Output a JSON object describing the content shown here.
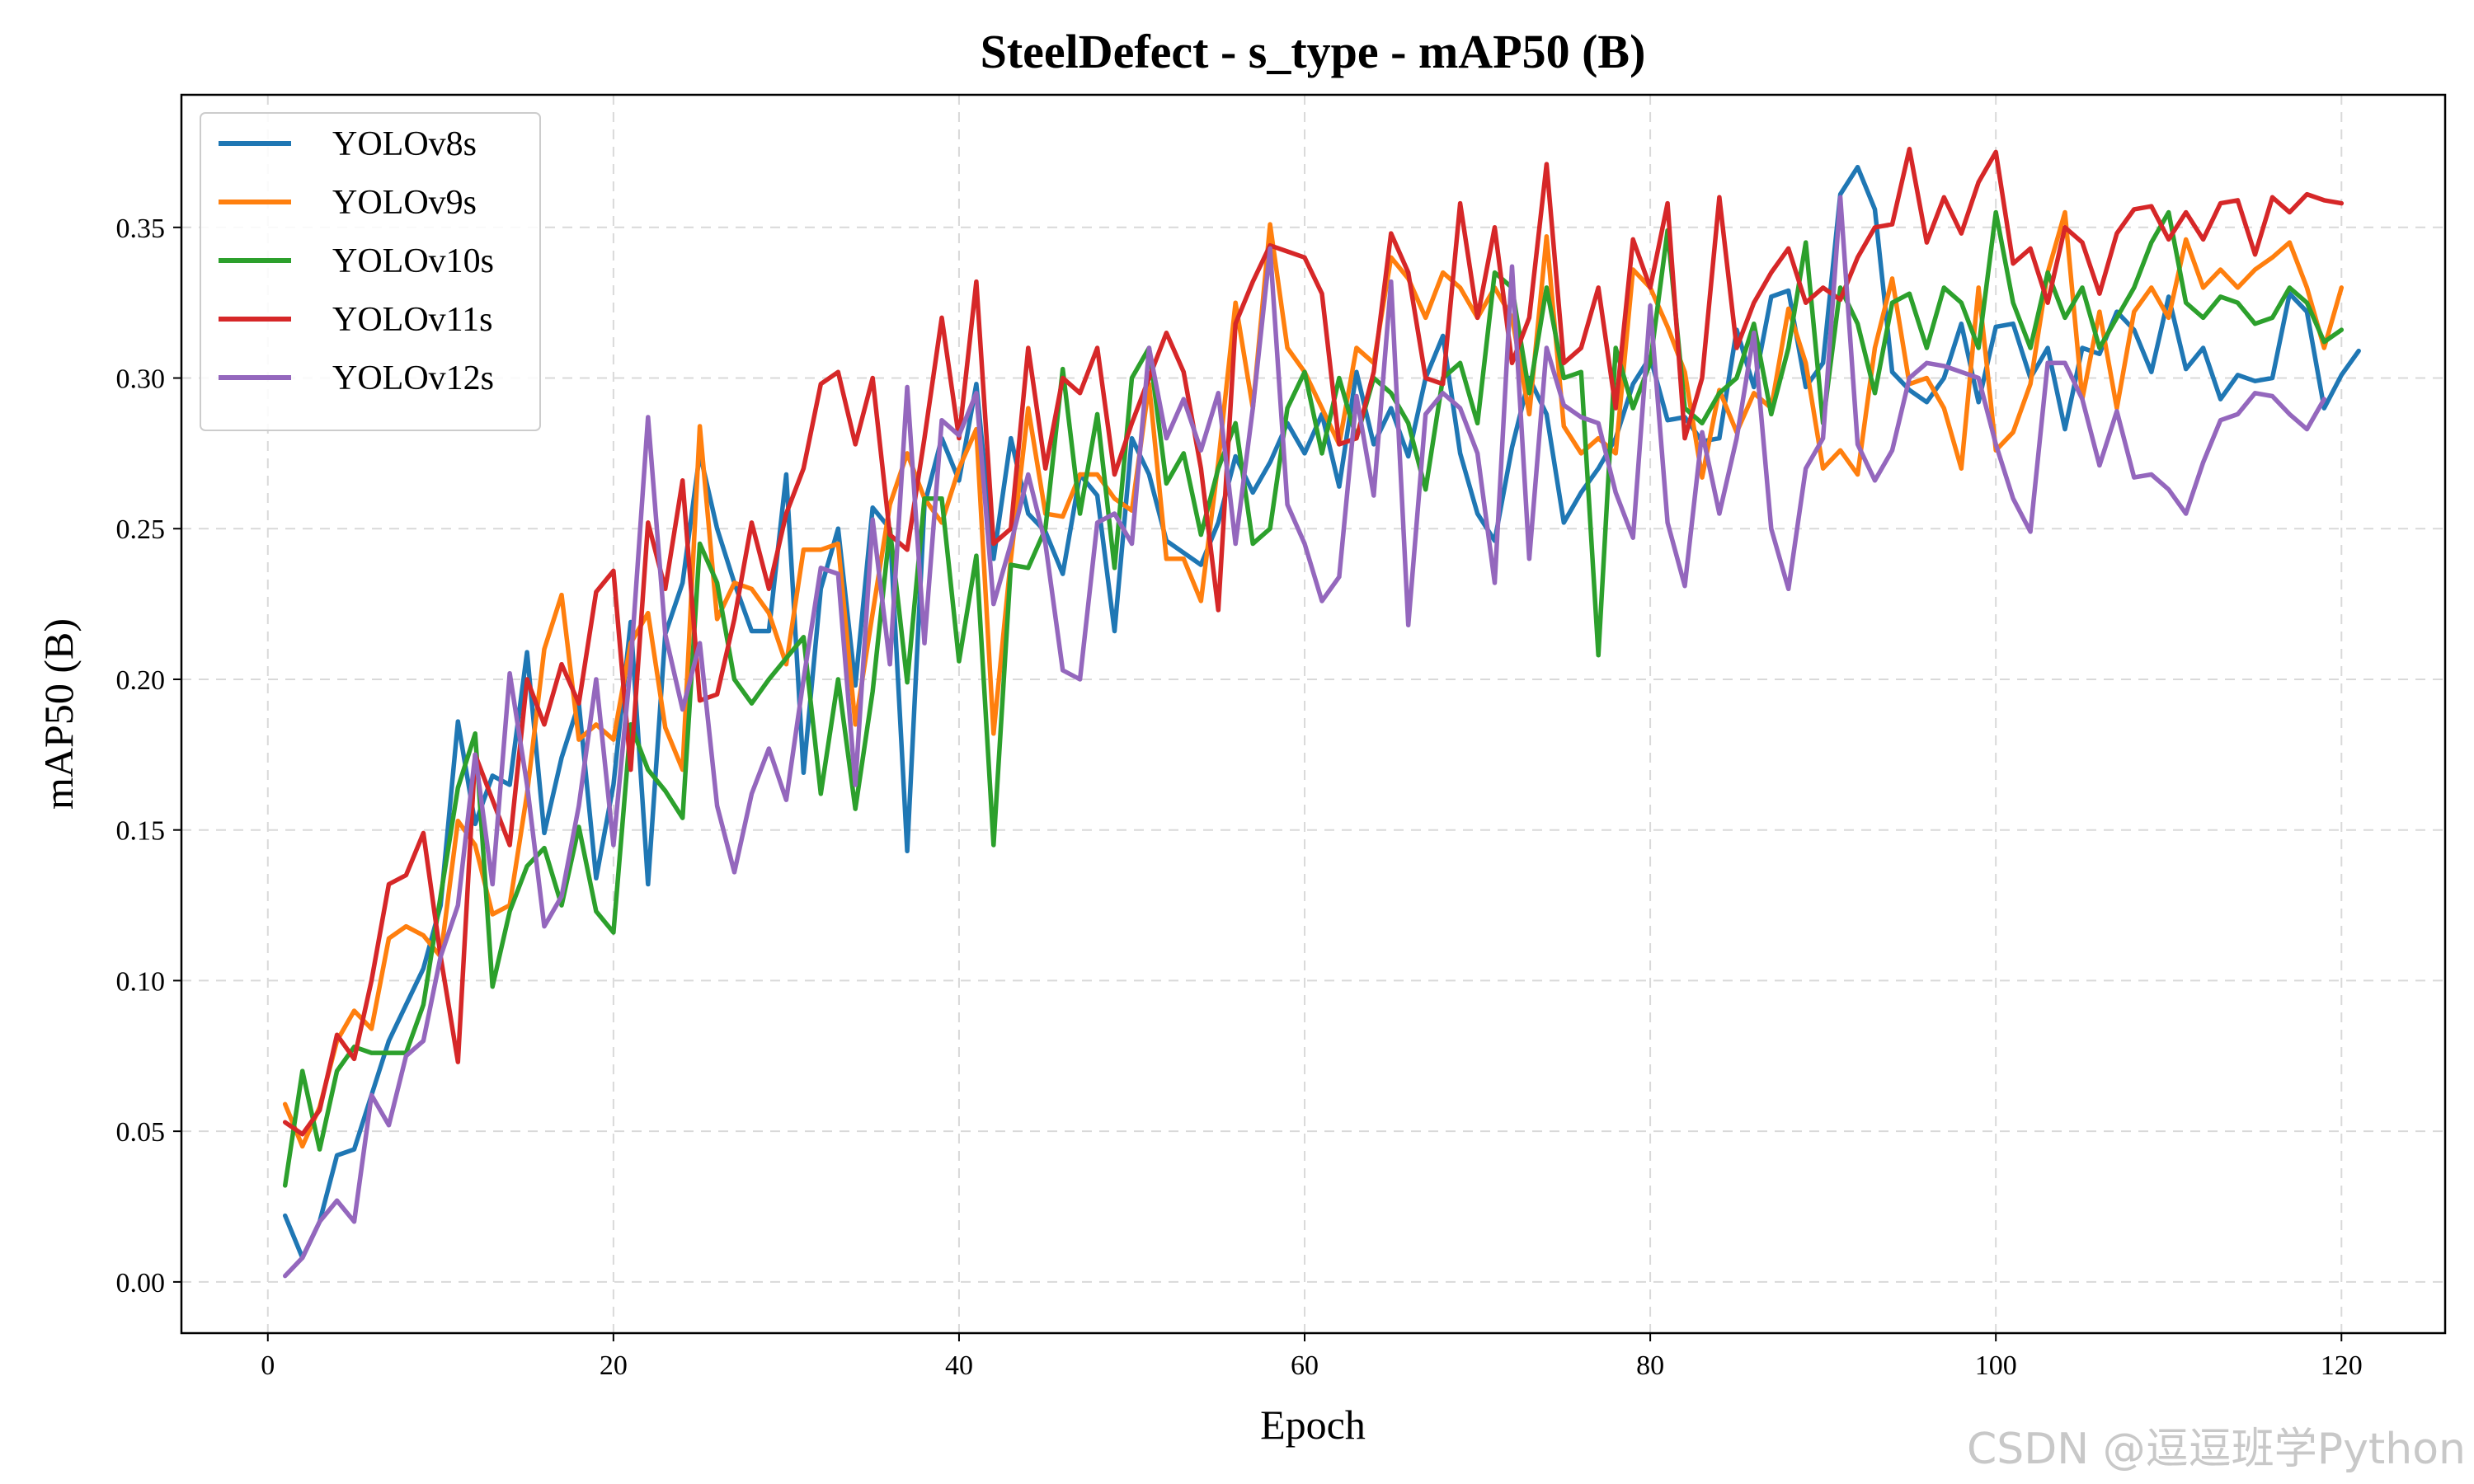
{
  "chart_data": {
    "type": "line",
    "title": "SteelDefect - s_type - mAP50 (B)",
    "xlabel": "Epoch",
    "ylabel": "mAP50 (B)",
    "xlim": [
      -5,
      126
    ],
    "ylim": [
      -0.017,
      0.394
    ],
    "xticks": [
      0,
      20,
      40,
      60,
      80,
      100,
      120
    ],
    "yticks": [
      0.0,
      0.05,
      0.1,
      0.15,
      0.2,
      0.25,
      0.3,
      0.35
    ],
    "ytick_labels": [
      "0.00",
      "0.05",
      "0.10",
      "0.15",
      "0.20",
      "0.25",
      "0.30",
      "0.35"
    ],
    "grid": true,
    "legend_position": "top-left",
    "x_start": 1,
    "series": [
      {
        "name": "YOLOv8s",
        "color": "#1f77b4",
        "values": [
          0.022,
          0.008,
          0.02,
          0.042,
          0.044,
          0.062,
          0.08,
          0.092,
          0.104,
          0.125,
          0.186,
          0.152,
          0.168,
          0.165,
          0.209,
          0.149,
          0.174,
          0.192,
          0.134,
          0.165,
          0.219,
          0.132,
          0.215,
          0.232,
          0.275,
          0.25,
          0.232,
          0.216,
          0.216,
          0.268,
          0.169,
          0.23,
          0.25,
          0.198,
          0.257,
          0.25,
          0.143,
          0.258,
          0.28,
          0.266,
          0.298,
          0.24,
          0.28,
          0.255,
          0.249,
          0.235,
          0.268,
          0.261,
          0.216,
          0.28,
          0.268,
          0.246,
          0.242,
          0.238,
          0.252,
          0.274,
          0.262,
          0.272,
          0.285,
          0.275,
          0.288,
          0.264,
          0.302,
          0.278,
          0.29,
          0.274,
          0.3,
          0.314,
          0.275,
          0.255,
          0.246,
          0.277,
          0.3,
          0.288,
          0.252,
          0.262,
          0.27,
          0.28,
          0.298,
          0.307,
          0.286,
          0.287,
          0.279,
          0.28,
          0.316,
          0.297,
          0.327,
          0.329,
          0.297,
          0.305,
          0.361,
          0.37,
          0.356,
          0.302,
          0.296,
          0.292,
          0.3,
          0.318,
          0.292,
          0.317,
          0.318,
          0.3,
          0.31,
          0.283,
          0.31,
          0.308,
          0.322,
          0.316,
          0.302,
          0.327,
          0.303,
          0.31,
          0.293,
          0.301,
          0.299,
          0.3,
          0.328,
          0.322,
          0.29,
          0.301,
          0.309
        ]
      },
      {
        "name": "YOLOv9s",
        "color": "#ff7f0e",
        "values": [
          0.059,
          0.045,
          0.058,
          0.08,
          0.09,
          0.084,
          0.114,
          0.118,
          0.115,
          0.108,
          0.153,
          0.145,
          0.122,
          0.125,
          0.162,
          0.21,
          0.228,
          0.18,
          0.185,
          0.18,
          0.212,
          0.222,
          0.184,
          0.17,
          0.284,
          0.22,
          0.232,
          0.23,
          0.222,
          0.205,
          0.243,
          0.243,
          0.245,
          0.185,
          0.222,
          0.258,
          0.275,
          0.26,
          0.252,
          0.27,
          0.283,
          0.182,
          0.24,
          0.29,
          0.255,
          0.254,
          0.268,
          0.268,
          0.26,
          0.256,
          0.298,
          0.24,
          0.24,
          0.226,
          0.272,
          0.325,
          0.29,
          0.351,
          0.31,
          0.302,
          0.29,
          0.278,
          0.31,
          0.305,
          0.34,
          0.333,
          0.32,
          0.335,
          0.33,
          0.32,
          0.33,
          0.32,
          0.288,
          0.347,
          0.284,
          0.275,
          0.28,
          0.275,
          0.336,
          0.33,
          0.317,
          0.302,
          0.267,
          0.296,
          0.282,
          0.295,
          0.29,
          0.323,
          0.305,
          0.27,
          0.276,
          0.268,
          0.31,
          0.333,
          0.298,
          0.3,
          0.29,
          0.27,
          0.33,
          0.276,
          0.282,
          0.298,
          0.335,
          0.355,
          0.293,
          0.322,
          0.29,
          0.322,
          0.33,
          0.32,
          0.346,
          0.33,
          0.336,
          0.33,
          0.336,
          0.34,
          0.345,
          0.33,
          0.31,
          0.33
        ]
      },
      {
        "name": "YOLOv10s",
        "color": "#2ca02c",
        "values": [
          0.032,
          0.07,
          0.044,
          0.07,
          0.078,
          0.076,
          0.076,
          0.076,
          0.092,
          0.128,
          0.164,
          0.182,
          0.098,
          0.123,
          0.138,
          0.144,
          0.125,
          0.151,
          0.123,
          0.116,
          0.185,
          0.17,
          0.163,
          0.154,
          0.245,
          0.232,
          0.2,
          0.192,
          0.2,
          0.207,
          0.214,
          0.162,
          0.2,
          0.157,
          0.196,
          0.25,
          0.199,
          0.26,
          0.26,
          0.206,
          0.241,
          0.145,
          0.238,
          0.237,
          0.25,
          0.303,
          0.255,
          0.288,
          0.237,
          0.3,
          0.31,
          0.265,
          0.275,
          0.248,
          0.27,
          0.285,
          0.245,
          0.25,
          0.29,
          0.302,
          0.275,
          0.3,
          0.28,
          0.3,
          0.295,
          0.285,
          0.263,
          0.3,
          0.305,
          0.285,
          0.335,
          0.33,
          0.295,
          0.33,
          0.3,
          0.302,
          0.208,
          0.31,
          0.29,
          0.305,
          0.349,
          0.29,
          0.285,
          0.295,
          0.3,
          0.318,
          0.288,
          0.31,
          0.345,
          0.285,
          0.33,
          0.318,
          0.295,
          0.325,
          0.328,
          0.31,
          0.33,
          0.325,
          0.31,
          0.355,
          0.325,
          0.31,
          0.335,
          0.32,
          0.33,
          0.31,
          0.32,
          0.33,
          0.345,
          0.355,
          0.325,
          0.32,
          0.327,
          0.325,
          0.318,
          0.32,
          0.33,
          0.325,
          0.312,
          0.316
        ]
      },
      {
        "name": "YOLOv11s",
        "color": "#d62728",
        "values": [
          0.053,
          0.049,
          0.057,
          0.082,
          0.074,
          0.1,
          0.132,
          0.135,
          0.149,
          0.108,
          0.073,
          0.175,
          0.16,
          0.145,
          0.2,
          0.185,
          0.205,
          0.192,
          0.229,
          0.236,
          0.17,
          0.252,
          0.23,
          0.266,
          0.193,
          0.195,
          0.22,
          0.252,
          0.23,
          0.255,
          0.27,
          0.298,
          0.302,
          0.278,
          0.3,
          0.248,
          0.243,
          0.28,
          0.32,
          0.28,
          0.332,
          0.245,
          0.25,
          0.31,
          0.27,
          0.3,
          0.295,
          0.31,
          0.268,
          0.285,
          0.3,
          0.315,
          0.302,
          0.27,
          0.223,
          0.318,
          0.332,
          0.344,
          0.342,
          0.34,
          0.328,
          0.278,
          0.28,
          0.302,
          0.348,
          0.335,
          0.3,
          0.298,
          0.358,
          0.32,
          0.35,
          0.305,
          0.32,
          0.371,
          0.305,
          0.31,
          0.33,
          0.29,
          0.346,
          0.33,
          0.358,
          0.28,
          0.3,
          0.36,
          0.31,
          0.325,
          0.335,
          0.343,
          0.325,
          0.33,
          0.326,
          0.34,
          0.35,
          0.351,
          0.376,
          0.345,
          0.36,
          0.348,
          0.365,
          0.375,
          0.338,
          0.343,
          0.325,
          0.35,
          0.345,
          0.328,
          0.348,
          0.356,
          0.357,
          0.346,
          0.355,
          0.346,
          0.358,
          0.359,
          0.341,
          0.36,
          0.355,
          0.361,
          0.359,
          0.358
        ]
      },
      {
        "name": "YOLOv12s",
        "color": "#9467bd",
        "values": [
          0.002,
          0.008,
          0.02,
          0.027,
          0.02,
          0.062,
          0.052,
          0.075,
          0.08,
          0.108,
          0.125,
          0.175,
          0.132,
          0.202,
          0.165,
          0.118,
          0.128,
          0.158,
          0.2,
          0.145,
          0.205,
          0.287,
          0.215,
          0.19,
          0.212,
          0.158,
          0.136,
          0.162,
          0.177,
          0.16,
          0.2,
          0.237,
          0.235,
          0.165,
          0.253,
          0.205,
          0.297,
          0.212,
          0.286,
          0.281,
          0.295,
          0.225,
          0.245,
          0.268,
          0.245,
          0.203,
          0.2,
          0.252,
          0.255,
          0.245,
          0.31,
          0.28,
          0.293,
          0.276,
          0.295,
          0.245,
          0.29,
          0.343,
          0.258,
          0.245,
          0.226,
          0.234,
          0.294,
          0.261,
          0.332,
          0.218,
          0.288,
          0.295,
          0.29,
          0.275,
          0.232,
          0.337,
          0.24,
          0.31,
          0.291,
          0.287,
          0.285,
          0.262,
          0.247,
          0.324,
          0.252,
          0.231,
          0.282,
          0.255,
          0.28,
          0.315,
          0.25,
          0.23,
          0.27,
          0.28,
          0.36,
          0.278,
          0.266,
          0.276,
          0.3,
          0.305,
          0.304,
          0.302,
          0.3,
          0.278,
          0.26,
          0.249,
          0.305,
          0.305,
          0.293,
          0.271,
          0.289,
          0.267,
          0.268,
          0.263,
          0.255,
          0.272,
          0.286,
          0.288,
          0.295,
          0.294,
          0.288,
          0.283,
          0.293
        ]
      }
    ]
  },
  "watermark": "CSDN @逗逗班学Python"
}
